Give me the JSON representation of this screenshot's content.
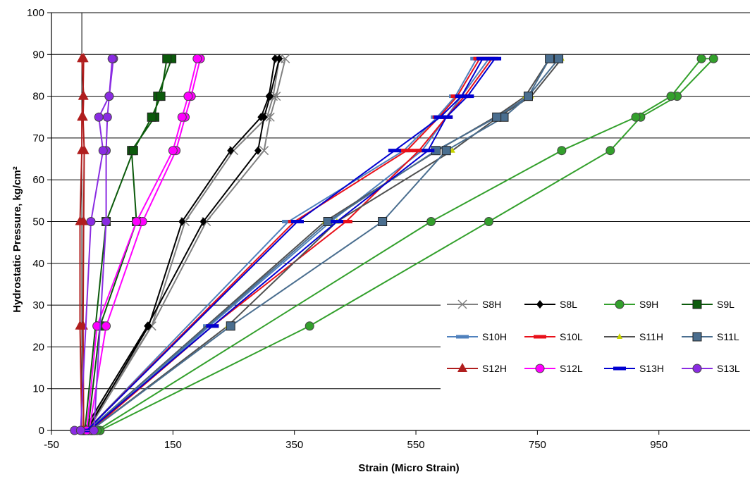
{
  "chart_data": {
    "type": "line",
    "title": "",
    "xlabel": "Strain (Micro Strain)",
    "ylabel": "Hydrostatic Pressure, kg/cm²",
    "xlim": [
      -50,
      1100
    ],
    "ylim": [
      0,
      100
    ],
    "xticks": [
      -50,
      150,
      350,
      550,
      750,
      950
    ],
    "xtick_labels": [
      "-50",
      "150",
      "350",
      "550",
      "750",
      "950"
    ],
    "yticks": [
      0,
      10,
      20,
      30,
      40,
      50,
      60,
      70,
      80,
      90,
      100
    ],
    "ytick_labels": [
      "0",
      "10",
      "20",
      "30",
      "40",
      "50",
      "60",
      "70",
      "80",
      "90",
      "100"
    ],
    "grid": "horizontal",
    "legend_position": "bottom-right",
    "series": [
      {
        "name": "S8H",
        "color": "#808080",
        "marker": "x",
        "x": [
          5,
          115,
          205,
          300,
          310,
          320,
          335,
          325,
          315,
          305,
          250,
          170,
          115,
          10
        ],
        "y": [
          0,
          25,
          50,
          67,
          75,
          80,
          89,
          89,
          80,
          75,
          67,
          50,
          25,
          0
        ]
      },
      {
        "name": "S8L",
        "color": "#000000",
        "marker": "diamond",
        "x": [
          3,
          108,
          200,
          290,
          300,
          310,
          325,
          318,
          308,
          295,
          245,
          165,
          110,
          8
        ],
        "y": [
          0,
          25,
          50,
          67,
          75,
          80,
          89,
          89,
          80,
          75,
          67,
          50,
          25,
          0
        ]
      },
      {
        "name": "S9H",
        "color": "#33a02c",
        "marker": "circle",
        "x": [
          30,
          375,
          670,
          870,
          920,
          980,
          1040,
          1020,
          970,
          912,
          790,
          575,
          25
        ],
        "y": [
          0,
          25,
          50,
          67,
          75,
          80,
          89,
          89,
          80,
          75,
          67,
          50,
          0
        ]
      },
      {
        "name": "S9L",
        "color": "#0b5a0b",
        "marker": "square",
        "x": [
          10,
          30,
          90,
          82,
          120,
          125,
          148,
          140,
          130,
          115,
          85,
          40,
          5
        ],
        "y": [
          0,
          25,
          50,
          67,
          75,
          80,
          89,
          89,
          80,
          75,
          67,
          50,
          0
        ]
      },
      {
        "name": "S10H",
        "color": "#4f81bd",
        "marker": "dash",
        "x": [
          15,
          210,
          410,
          560,
          600,
          625,
          670,
          650,
          615,
          585,
          530,
          340,
          8
        ],
        "y": [
          0,
          25,
          50,
          67,
          75,
          80,
          89,
          89,
          80,
          75,
          67,
          50,
          0
        ]
      },
      {
        "name": "S10L",
        "color": "#e8101a",
        "marker": "dash",
        "x": [
          15,
          215,
          435,
          555,
          600,
          630,
          675,
          655,
          618,
          588,
          535,
          350,
          8
        ],
        "y": [
          0,
          25,
          50,
          67,
          75,
          80,
          89,
          89,
          80,
          75,
          67,
          50,
          0
        ]
      },
      {
        "name": "S11H",
        "color": "#505050",
        "marker": "triangle-small",
        "x": [
          15,
          240,
          420,
          610,
          685,
          740,
          790,
          770,
          730,
          680,
          585,
          400,
          10
        ],
        "y": [
          0,
          25,
          50,
          67,
          75,
          80,
          89,
          89,
          80,
          75,
          67,
          50,
          0
        ]
      },
      {
        "name": "S11L",
        "color": "#4a6e8f",
        "marker": "square",
        "x": [
          15,
          245,
          495,
          600,
          695,
          735,
          785,
          770,
          735,
          683,
          583,
          405,
          10
        ],
        "y": [
          0,
          25,
          50,
          67,
          75,
          80,
          89,
          89,
          80,
          75,
          67,
          50,
          0
        ]
      },
      {
        "name": "S12H",
        "color": "#b01e1e",
        "marker": "triangle",
        "x": [
          0,
          -3,
          -3,
          0,
          0,
          2,
          3,
          0,
          3,
          2,
          4,
          3,
          2,
          3
        ],
        "y": [
          0,
          25,
          50,
          67,
          75,
          80,
          89,
          89,
          80,
          75,
          67,
          50,
          25,
          0
        ]
      },
      {
        "name": "S12L",
        "color": "#ff00ff",
        "marker": "circle",
        "x": [
          12,
          40,
          100,
          155,
          170,
          180,
          195,
          190,
          175,
          165,
          150,
          90,
          25,
          8
        ],
        "y": [
          0,
          25,
          50,
          67,
          75,
          80,
          89,
          89,
          80,
          75,
          67,
          50,
          25,
          0
        ]
      },
      {
        "name": "S13H",
        "color": "#0000d0",
        "marker": "dash",
        "x": [
          12,
          215,
          420,
          570,
          600,
          635,
          680,
          660,
          625,
          590,
          515,
          355,
          8
        ],
        "y": [
          0,
          25,
          50,
          67,
          75,
          80,
          89,
          89,
          80,
          75,
          67,
          50,
          0
        ]
      },
      {
        "name": "S13L",
        "color": "#8a2be2",
        "marker": "circle",
        "x": [
          -12,
          20,
          40,
          40,
          42,
          45,
          52,
          50,
          45,
          28,
          35,
          15,
          -2
        ],
        "y": [
          0,
          0,
          50,
          67,
          75,
          80,
          89,
          89,
          80,
          75,
          67,
          50,
          0
        ]
      }
    ]
  }
}
